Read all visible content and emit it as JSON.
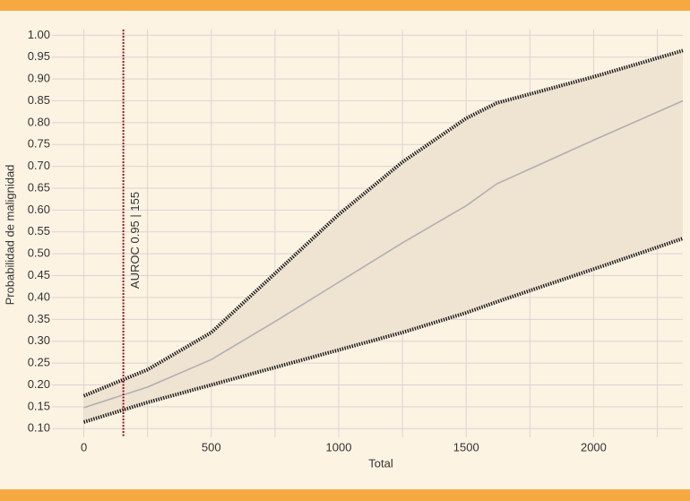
{
  "chart_data": {
    "type": "line",
    "x_label": "Total",
    "y_label": "Probabilidad de malignidad",
    "x": [
      0,
      250,
      500,
      750,
      1000,
      1250,
      1500,
      1620,
      2000,
      2350
    ],
    "series": [
      {
        "name": "upper",
        "color": "#1a1a1a",
        "style": "dotted",
        "values": [
          0.175,
          0.235,
          0.32,
          0.455,
          0.59,
          0.71,
          0.81,
          0.845,
          0.905,
          0.965
        ]
      },
      {
        "name": "center",
        "color": "#b0b0b0",
        "style": "solid",
        "values": [
          0.148,
          0.195,
          0.258,
          0.345,
          0.435,
          0.525,
          0.61,
          0.66,
          0.76,
          0.85
        ]
      },
      {
        "name": "lower",
        "color": "#1a1a1a",
        "style": "dotted",
        "values": [
          0.115,
          0.16,
          0.2,
          0.24,
          0.28,
          0.32,
          0.365,
          0.39,
          0.465,
          0.535
        ]
      }
    ],
    "band_color": "#efe3d2",
    "cutoff": {
      "value": 155,
      "label": "AUROC 0.95 | 155",
      "color": "#a01020"
    },
    "xlim": [
      -125,
      2350
    ],
    "xticks": [
      0,
      500,
      1000,
      1500,
      2000
    ],
    "xgrid": [
      0,
      250,
      500,
      750,
      1000,
      1250,
      1500,
      1750,
      2000,
      2250
    ],
    "ylim": [
      0.08,
      1.013
    ],
    "yticks": [
      {
        "value": 1.0,
        "label": "1.00"
      },
      {
        "value": 0.95,
        "label": "0.95"
      },
      {
        "value": 0.9,
        "label": "0.90"
      },
      {
        "value": 0.85,
        "label": "0.85"
      },
      {
        "value": 0.8,
        "label": "0.80"
      },
      {
        "value": 0.75,
        "label": "0.75"
      },
      {
        "value": 0.7,
        "label": "0.70"
      },
      {
        "value": 0.65,
        "label": "0.65"
      },
      {
        "value": 0.6,
        "label": "0.60"
      },
      {
        "value": 0.55,
        "label": "0.55"
      },
      {
        "value": 0.5,
        "label": "0.50"
      },
      {
        "value": 0.45,
        "label": "0.45"
      },
      {
        "value": 0.4,
        "label": "0.40"
      },
      {
        "value": 0.35,
        "label": "0.35"
      },
      {
        "value": 0.3,
        "label": "0.30"
      },
      {
        "value": 0.25,
        "label": "0.25"
      },
      {
        "value": 0.2,
        "label": "0.20"
      },
      {
        "value": 0.15,
        "label": "0.15"
      },
      {
        "value": 0.1,
        "label": "0.10"
      }
    ],
    "grid": true
  }
}
